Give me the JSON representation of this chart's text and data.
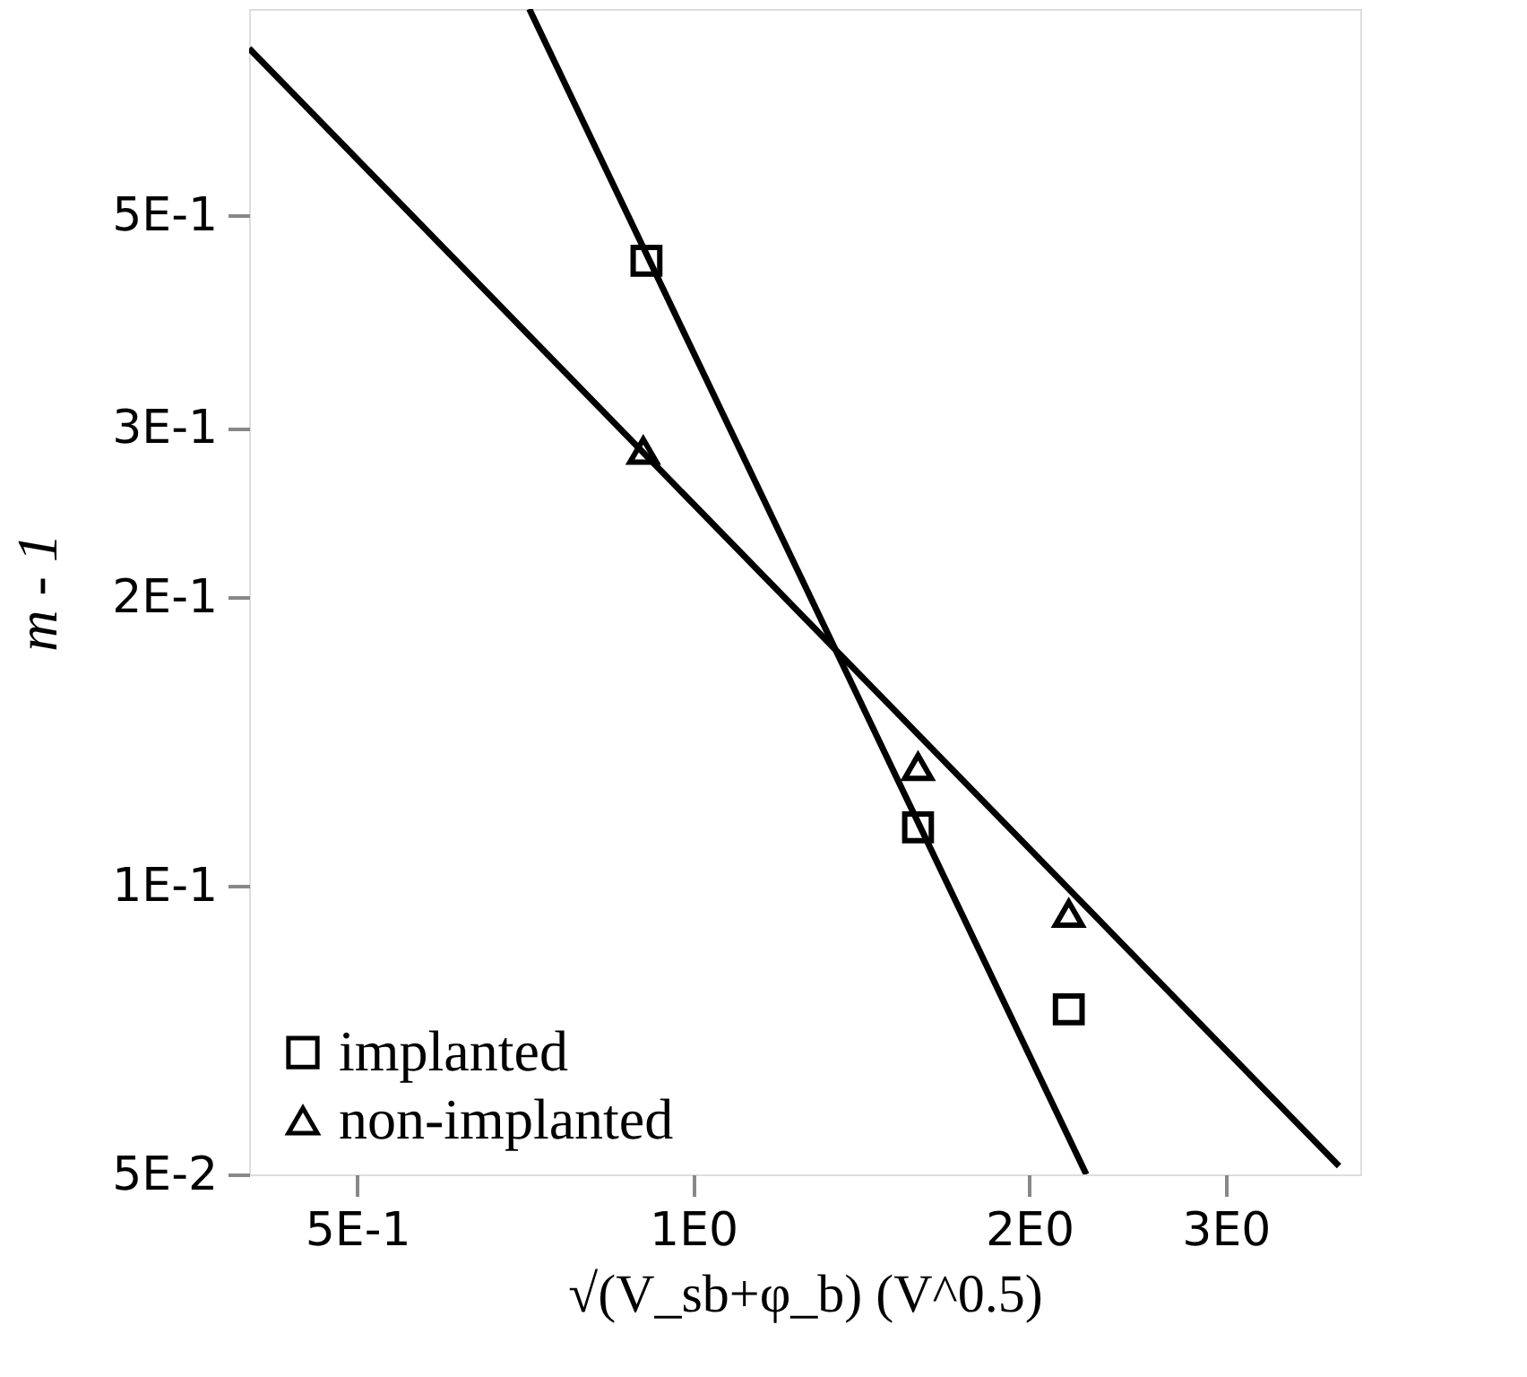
{
  "chart_data": {
    "type": "scatter",
    "xlabel": "√(V_sb+φ_b)   (V^0.5)",
    "ylabel": "m - 1",
    "log": "xy",
    "xlim": [
      0.4,
      3.96
    ],
    "ylim": [
      0.05,
      0.82
    ],
    "xticks": [
      {
        "value": 0.5,
        "label": "5E-1"
      },
      {
        "value": 1,
        "label": "1E0"
      },
      {
        "value": 2,
        "label": "2E0"
      },
      {
        "value": 3,
        "label": "3E0"
      }
    ],
    "yticks": [
      {
        "value": 0.05,
        "label": "5E-2"
      },
      {
        "value": 0.1,
        "label": "1E-1"
      },
      {
        "value": 0.2,
        "label": "2E-1"
      },
      {
        "value": 0.3,
        "label": "3E-1"
      },
      {
        "value": 0.5,
        "label": "5E-1"
      }
    ],
    "grid": false,
    "legend": "bottom left",
    "series": [
      {
        "name": "implanted",
        "marker": "square",
        "color": "#000000",
        "x": [
          0.908,
          1.59,
          2.17
        ],
        "values": [
          0.448,
          0.115,
          0.0743
        ]
      },
      {
        "name": "non-implanted",
        "marker": "triangle",
        "color": "#000000",
        "x": [
          0.902,
          1.59,
          2.17
        ],
        "values": [
          0.284,
          0.133,
          0.0935
        ]
      },
      {
        "type": "line",
        "line_style": "solid",
        "color": "#000000",
        "x": [
          0.713,
          2.25
        ],
        "values": [
          0.82,
          0.05
        ]
      },
      {
        "type": "line",
        "line_style": "solid",
        "color": "#000000",
        "x": [
          0.4,
          3.79
        ],
        "values": [
          0.746,
          0.051
        ]
      }
    ]
  }
}
